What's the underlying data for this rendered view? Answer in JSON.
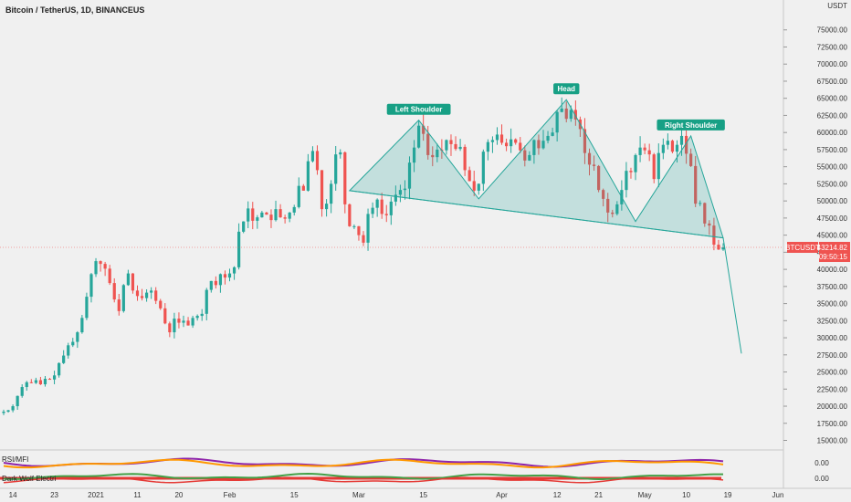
{
  "title": "Bitcoin / TetherUS, 1D, BINANCEUS",
  "indicator_labels": [
    "RSI/MFI",
    "Dark Wolf Electri"
  ],
  "price_tag": {
    "symbol": "BTCUSDT",
    "price": "43214.82",
    "countdown": "09:50:15"
  },
  "currency_label": "USDT",
  "colors": {
    "up": "#26a69a",
    "down": "#ef5350",
    "pattern_fill": "#26a69a",
    "label_bg": "#17a085",
    "purple": "#8e24aa",
    "orange": "#ff9800",
    "green": "#43a047",
    "red": "#e53935"
  },
  "chart_data": {
    "type": "candlestick",
    "title": "Bitcoin / TetherUS, 1D, BINANCEUS",
    "y_ticks": [
      15000,
      17500,
      20000,
      22500,
      25000,
      27500,
      30000,
      32500,
      35000,
      37500,
      40000,
      42500,
      45000,
      47500,
      50000,
      52500,
      55000,
      57500,
      60000,
      62500,
      65000,
      67500,
      70000,
      72500,
      75000
    ],
    "ylim": [
      14000,
      77500
    ],
    "x_ticks": [
      "14",
      "23",
      "2021",
      "11",
      "20",
      "Feb",
      "15",
      "Mar",
      "15",
      "Apr",
      "12",
      "21",
      "May",
      "10",
      "19",
      "Jun"
    ],
    "last_price": 43214.82,
    "close_path": [
      19200,
      19400,
      20000,
      21500,
      22800,
      23500,
      23400,
      23800,
      23200,
      24000,
      23900,
      24500,
      26300,
      27400,
      28900,
      29400,
      30800,
      32900,
      36000,
      39300,
      41200,
      40800,
      40100,
      38000,
      35600,
      33900,
      37700,
      39400,
      36900,
      36100,
      35800,
      36600,
      36900,
      35400,
      34300,
      32100,
      30800,
      32800,
      32200,
      32500,
      31800,
      32900,
      33200,
      33500,
      37000,
      38300,
      37700,
      39300,
      38800,
      39400,
      40300,
      45500,
      47000,
      48900,
      47100,
      47600,
      48300,
      48000,
      47200,
      48800,
      47600,
      47400,
      48300,
      49100,
      52200,
      51500,
      55800,
      57300,
      54500,
      48800,
      49600,
      52500,
      56800,
      57100,
      49500,
      46300,
      46300,
      45000,
      43900,
      48100,
      49000,
      50200,
      48100,
      47900,
      49900,
      50900,
      51600,
      51800,
      55600,
      57800,
      61000,
      59800,
      56700,
      56400,
      57500,
      57400,
      58900,
      58300,
      57600,
      57900,
      54500,
      52900,
      51500,
      52500,
      57200,
      58600,
      58900,
      59700,
      58500,
      58000,
      59000,
      58500,
      57400,
      55900,
      56700,
      58900,
      57700,
      58800,
      59500,
      60000,
      63000,
      63500,
      62000,
      63300,
      61900,
      60500,
      57000,
      55300,
      55100,
      51600,
      50300,
      48300,
      48100,
      49500,
      51600,
      54400,
      54200,
      56700,
      57800,
      57400,
      56800,
      53200,
      57000,
      58200,
      58800,
      57200,
      58200,
      59500,
      56900,
      55100,
      49600,
      49700,
      46700,
      46400,
      43600,
      42900,
      43215
    ],
    "pattern": {
      "labels": [
        "Left Shoulder",
        "Head",
        "Right Shoulder"
      ],
      "left_shoulder": 61800,
      "head": 64800,
      "right_shoulder": 59500,
      "neckline": [
        [
          51500,
          50300
        ],
        [
          47000,
          44600
        ]
      ],
      "projection_target": 27700
    },
    "indicators": [
      {
        "name": "RSI/MFI",
        "ticks": [
          "0.00"
        ]
      },
      {
        "name": "Dark Wolf Electri",
        "ticks": [
          "0.00"
        ]
      }
    ]
  }
}
